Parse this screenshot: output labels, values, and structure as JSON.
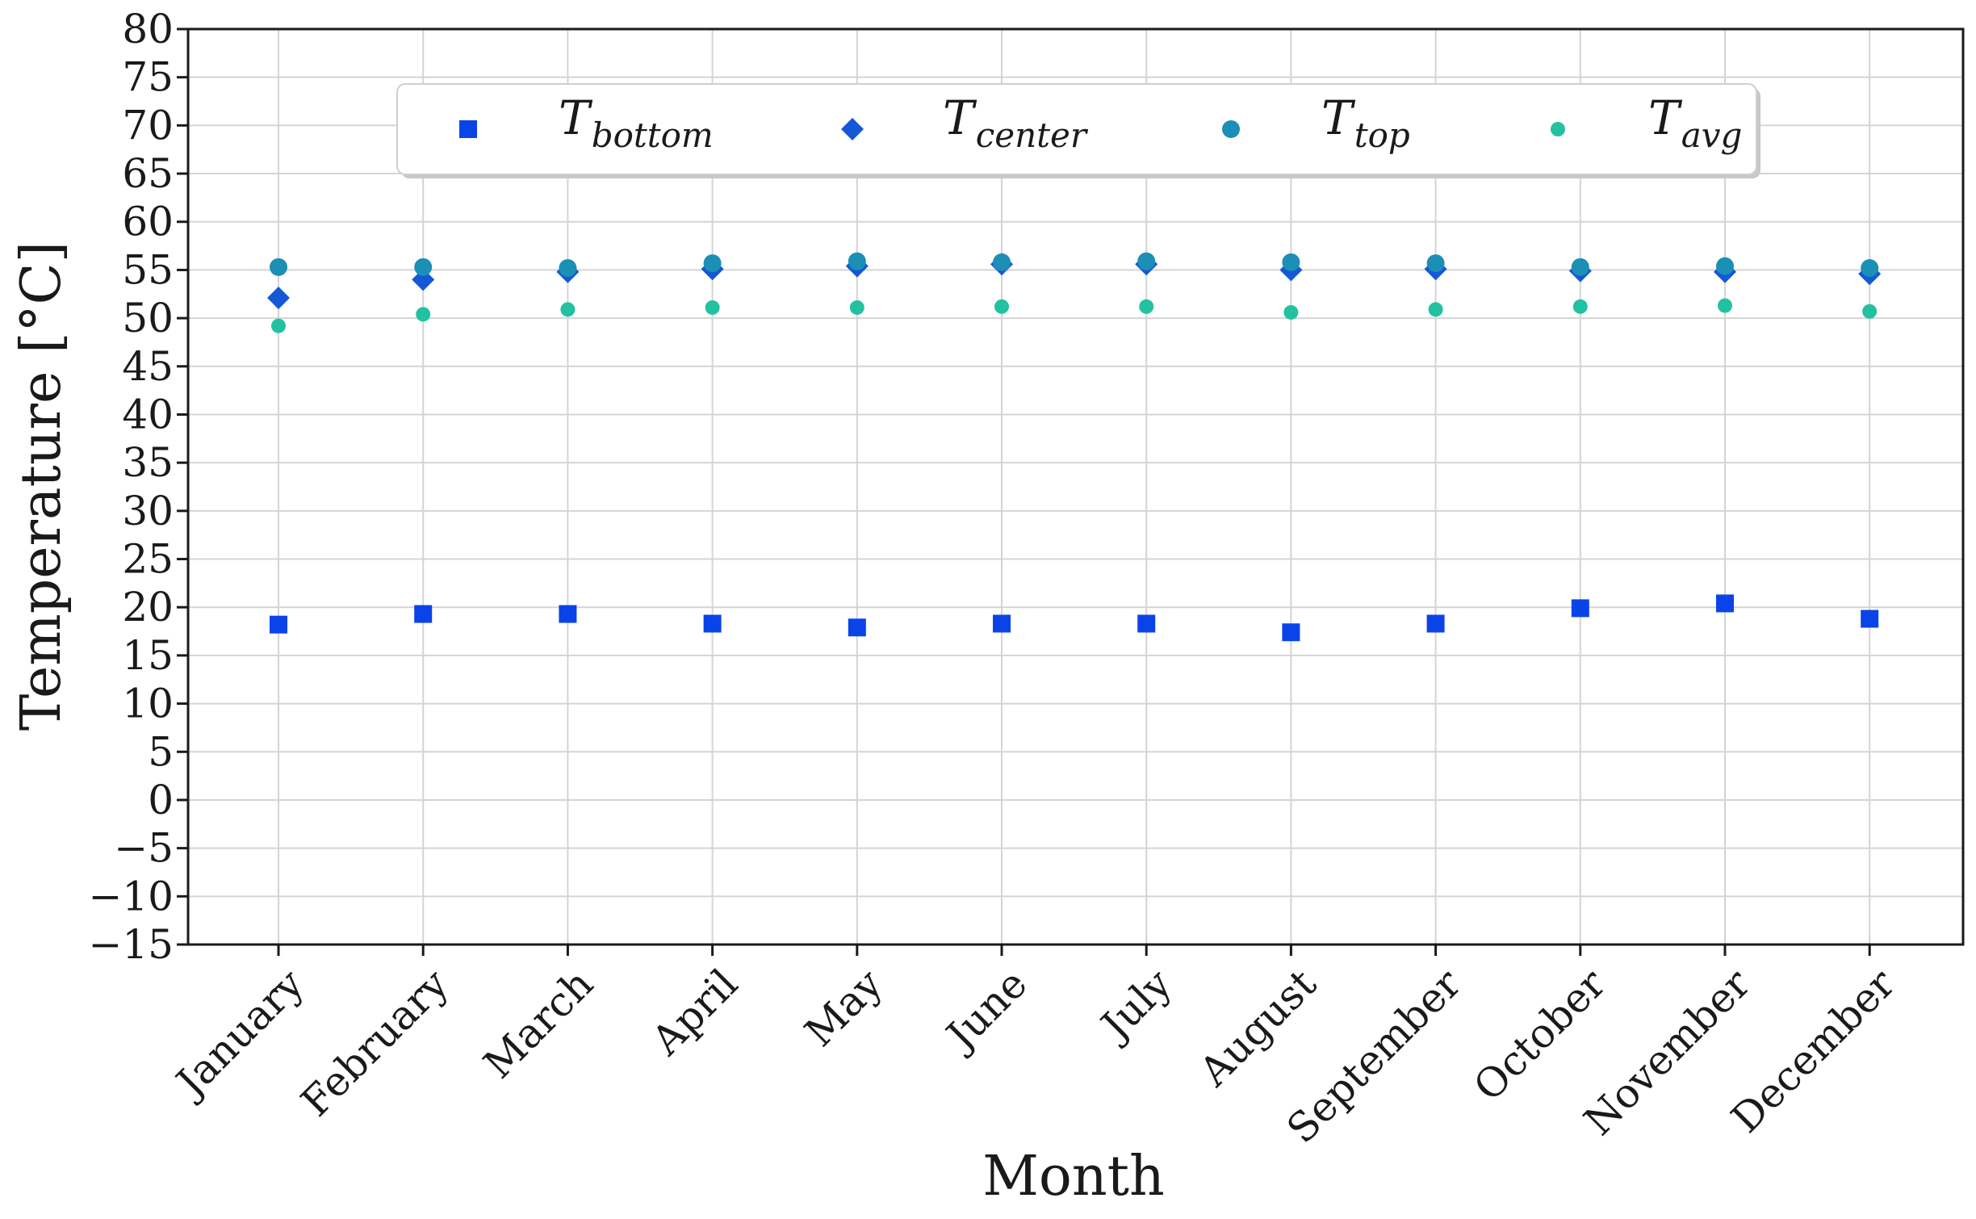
{
  "chart_data": {
    "type": "scatter",
    "title": "",
    "xlabel": "Month",
    "ylabel": "Temperature [°C]",
    "ylim": [
      -15,
      80
    ],
    "yticks": [
      -15,
      -10,
      -5,
      0,
      5,
      10,
      15,
      20,
      25,
      30,
      35,
      40,
      45,
      50,
      55,
      60,
      65,
      70,
      75,
      80
    ],
    "ytick_labels": [
      "−15",
      "−10",
      "−5",
      "0",
      "5",
      "10",
      "15",
      "20",
      "25",
      "30",
      "35",
      "40",
      "45",
      "50",
      "55",
      "60",
      "65",
      "70",
      "75",
      "80"
    ],
    "categories": [
      "January",
      "February",
      "March",
      "April",
      "May",
      "June",
      "July",
      "August",
      "September",
      "October",
      "November",
      "December"
    ],
    "grid": true,
    "legend_position": "top-center",
    "series": [
      {
        "name": "T_bottom",
        "legend_base": "T",
        "legend_sub": "bottom",
        "marker": "square",
        "color": "#0a44e8",
        "values": [
          18.2,
          19.3,
          19.3,
          18.3,
          17.9,
          18.3,
          18.3,
          17.4,
          18.3,
          19.9,
          20.4,
          18.8
        ]
      },
      {
        "name": "T_center",
        "legend_base": "T",
        "legend_sub": "center",
        "marker": "diamond",
        "color": "#1558d6",
        "values": [
          52.1,
          54.0,
          54.8,
          55.1,
          55.4,
          55.6,
          55.6,
          55.0,
          55.1,
          54.9,
          54.8,
          54.6
        ]
      },
      {
        "name": "T_top",
        "legend_base": "T",
        "legend_sub": "top",
        "marker": "circle",
        "color": "#1b8fb5",
        "values": [
          55.3,
          55.3,
          55.2,
          55.7,
          55.9,
          55.8,
          55.9,
          55.8,
          55.7,
          55.3,
          55.4,
          55.2
        ]
      },
      {
        "name": "T_avg",
        "legend_base": "T",
        "legend_sub": "avg",
        "marker": "circle-small",
        "color": "#22c2a0",
        "values": [
          49.2,
          50.4,
          50.9,
          51.1,
          51.1,
          51.2,
          51.2,
          50.6,
          50.9,
          51.2,
          51.3,
          50.7
        ]
      }
    ]
  }
}
